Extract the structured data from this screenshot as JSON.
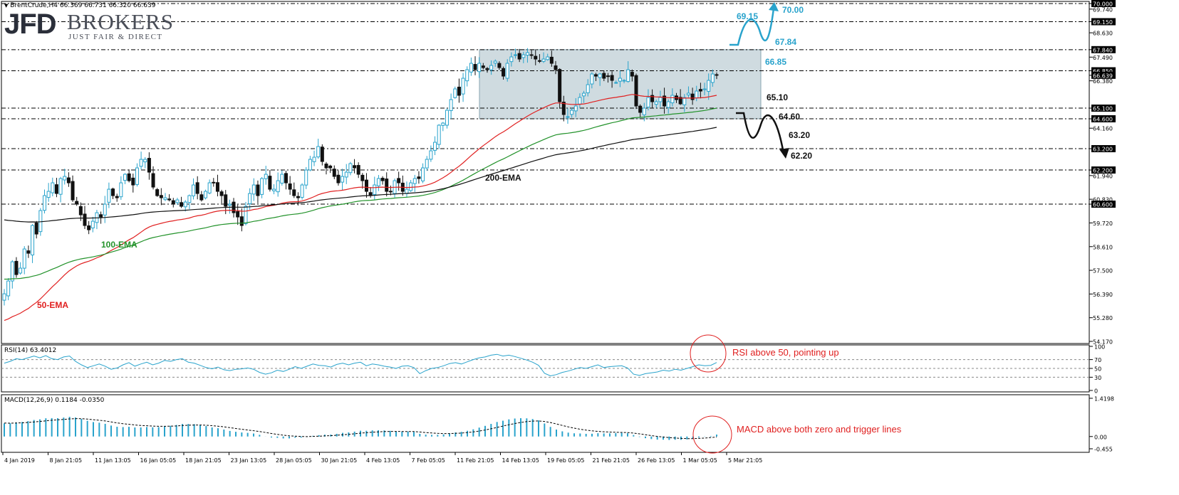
{
  "header": {
    "main_title": "BrentCrude,H4  66.369 66.731 66.320 66.639",
    "rsi_title": "RSI(14) 63.4012",
    "macd_title": "MACD(12,26,9) 0.1184 -0.0350"
  },
  "logo": {
    "mark": "JFD",
    "name": "BROKERS",
    "tagline": "JUST FAIR & DIRECT"
  },
  "colors": {
    "bull_candle": "#29a3cc",
    "bear_candle": "#111111",
    "ema50": "#e02020",
    "ema100": "#22922a",
    "ema200": "#111111",
    "scenario_up": "#29a3cc",
    "scenario_down": "#111111",
    "box_fill": "#cfdbe0",
    "annotation": "#e02020"
  },
  "chart_data": [
    {
      "panel": "price",
      "type": "candlestick",
      "symbol": "BrentCrude",
      "timeframe": "H4",
      "ylim": [
        54.17,
        70.0
      ],
      "y_ticks": [
        "70.000",
        "69.740",
        "69.150",
        "68.630",
        "67.840",
        "67.490",
        "66.850",
        "66.639",
        "66.380",
        "65.100",
        "64.600",
        "64.160",
        "63.200",
        "62.200",
        "61.940",
        "60.830",
        "60.600",
        "59.720",
        "58.610",
        "57.500",
        "56.390",
        "55.280",
        "54.170"
      ],
      "x_labels": [
        "4 Jan 2019",
        "8 Jan 21:05",
        "11 Jan 13:05",
        "16 Jan 05:05",
        "18 Jan 21:05",
        "23 Jan 13:05",
        "28 Jan 05:05",
        "30 Jan 21:05",
        "4 Feb 13:05",
        "7 Feb 05:05",
        "11 Feb 21:05",
        "14 Feb 13:05",
        "19 Feb 05:05",
        "21 Feb 21:05",
        "26 Feb 13:05",
        "1 Mar 05:05",
        "5 Mar 21:05"
      ],
      "close_path": [
        56.4,
        57.0,
        57.9,
        57.3,
        57.6,
        58.5,
        58.3,
        59.6,
        59.2,
        60.3,
        61.0,
        61.2,
        61.6,
        61.1,
        61.8,
        61.9,
        61.6,
        60.8,
        60.6,
        60.1,
        59.6,
        59.4,
        59.8,
        60.2,
        60.0,
        60.6,
        61.3,
        61.0,
        60.9,
        61.6,
        62.0,
        61.7,
        61.5,
        62.3,
        62.7,
        62.7,
        62.1,
        61.4,
        61.0,
        60.9,
        60.9,
        60.8,
        60.6,
        60.8,
        60.5,
        60.7,
        61.0,
        61.5,
        61.1,
        60.8,
        61.2,
        61.6,
        61.6,
        61.2,
        61.0,
        60.5,
        60.6,
        60.2,
        60.0,
        59.6,
        60.5,
        61.1,
        61.5,
        61.0,
        61.8,
        62.0,
        61.3,
        61.3,
        61.7,
        62.0,
        61.6,
        61.3,
        61.0,
        60.9,
        61.5,
        62.2,
        62.7,
        62.8,
        63.3,
        62.6,
        62.3,
        62.3,
        61.9,
        61.6,
        61.9,
        62.1,
        62.5,
        62.3,
        62.0,
        61.7,
        61.2,
        61.0,
        61.5,
        61.8,
        61.7,
        61.2,
        61.2,
        61.7,
        61.6,
        61.2,
        61.3,
        61.6,
        61.8,
        61.8,
        62.3,
        62.7,
        63.1,
        63.5,
        64.3,
        64.4,
        65.0,
        65.5,
        66.0,
        65.7,
        66.5,
        66.9,
        67.2,
        66.9,
        67.2,
        67.0,
        66.9,
        67.1,
        67.3,
        67.0,
        66.6,
        67.2,
        67.5,
        67.6,
        67.4,
        67.6,
        67.7,
        67.6,
        67.4,
        67.3,
        67.4,
        67.5,
        67.2,
        66.9,
        65.4,
        64.8,
        64.7,
        65.0,
        65.2,
        65.6,
        65.8,
        66.2,
        66.7,
        66.6,
        66.7,
        66.5,
        66.6,
        66.4,
        66.3,
        66.5,
        66.4,
        66.9,
        66.6,
        65.2,
        64.9,
        65.1,
        65.6,
        65.4,
        65.4,
        65.6,
        65.2,
        65.4,
        65.7,
        65.5,
        65.3,
        65.6,
        65.8,
        65.5,
        65.9,
        65.9,
        66.0,
        66.4,
        66.7,
        66.64
      ],
      "ema_lines": [
        {
          "name": "50-EMA",
          "start": 55.1,
          "end": 65.7
        },
        {
          "name": "100-EMA",
          "start": 57.1,
          "end": 65.1
        },
        {
          "name": "200-EMA",
          "start": 59.9,
          "end": 64.2
        }
      ],
      "horizontal_levels": [
        70.0,
        69.15,
        67.84,
        66.85,
        65.1,
        64.6,
        63.2,
        62.2,
        60.6
      ],
      "range_box": {
        "top": 67.84,
        "bottom": 64.6
      },
      "annotations": {
        "bull_levels": [
          "69.15",
          "70.00",
          "67.84",
          "66.85"
        ],
        "bear_levels": [
          "65.10",
          "64.60",
          "63.20",
          "62.20"
        ],
        "ema_labels": [
          "50-EMA",
          "100-EMA",
          "200-EMA"
        ]
      }
    },
    {
      "panel": "rsi",
      "type": "line",
      "name": "RSI(14)",
      "ylim": [
        0,
        100
      ],
      "y_ticks": [
        "100",
        "70",
        "50",
        "30",
        "0"
      ],
      "values": [
        62,
        66,
        72,
        70,
        74,
        78,
        74,
        79,
        72,
        70,
        76,
        78,
        66,
        58,
        52,
        56,
        60,
        55,
        48,
        51,
        58,
        63,
        55,
        60,
        64,
        58,
        62,
        68,
        66,
        70,
        72,
        64,
        62,
        57,
        52,
        49,
        53,
        47,
        45,
        48,
        49,
        51,
        48,
        41,
        37,
        40,
        46,
        43,
        48,
        54,
        50,
        55,
        60,
        57,
        56,
        53,
        59,
        62,
        58,
        62,
        64,
        56,
        60,
        58,
        55,
        53,
        50,
        55,
        56,
        52,
        38,
        45,
        50,
        52,
        56,
        61,
        63,
        60,
        65,
        70,
        74,
        76,
        80,
        82,
        78,
        80,
        77,
        73,
        69,
        64,
        57,
        39,
        33,
        36,
        41,
        44,
        48,
        52,
        50,
        54,
        58,
        52,
        54,
        55,
        56,
        51,
        37,
        34,
        38,
        40,
        42,
        46,
        44,
        48,
        46,
        50,
        54,
        58,
        56,
        57,
        63.4
      ],
      "annotation": "RSI above 50, pointing up"
    },
    {
      "panel": "macd",
      "type": "bar+line",
      "name": "MACD(12,26,9)",
      "ylim": [
        -0.455,
        1.4198
      ],
      "y_ticks": [
        "1.4198",
        "0.00",
        "-0.455"
      ],
      "annotation": "MACD above both zero and trigger lines"
    }
  ]
}
